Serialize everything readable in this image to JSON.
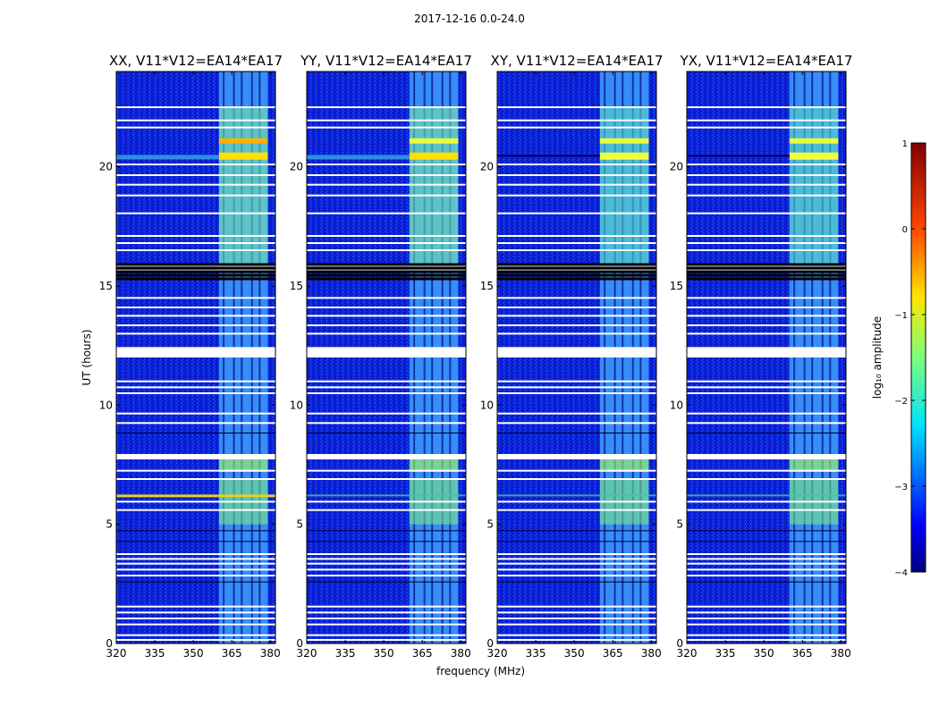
{
  "figure": {
    "suptitle": "2017-12-16 0.0-24.0",
    "xlabel": "frequency (MHz)",
    "ylabel": "UT (hours)",
    "colorbar_label": "log₁₀ amplitude"
  },
  "chart_data": {
    "type": "heatmap",
    "panels": [
      {
        "title": "XX, V11*V12=EA14*EA17",
        "strong_band_at_20h": true
      },
      {
        "title": "YY, V11*V12=EA14*EA17",
        "strong_band_at_20h": true
      },
      {
        "title": "XY, V11*V12=EA14*EA17",
        "strong_band_at_20h": false
      },
      {
        "title": "YX, V11*V12=EA14*EA17",
        "strong_band_at_20h": false
      }
    ],
    "x": {
      "label": "frequency (MHz)",
      "range": [
        320,
        382
      ],
      "ticks": [
        320,
        335,
        350,
        365,
        380
      ]
    },
    "y": {
      "label": "UT (hours)",
      "range": [
        0,
        24
      ],
      "ticks": [
        0,
        5,
        10,
        15,
        20
      ]
    },
    "colorbar": {
      "label": "log10 amplitude",
      "range": [
        -4,
        1
      ],
      "ticks": [
        -4,
        -3,
        -2,
        -1,
        0,
        1
      ],
      "colormap": "jet"
    },
    "rfi_band_mhz": [
      360,
      379
    ],
    "flagged_rows_ut": [
      0.15,
      0.35,
      0.8,
      1.05,
      1.3,
      1.55,
      2.85,
      3.1,
      3.35,
      3.55,
      3.75,
      5.6,
      5.95,
      6.9,
      7.25,
      9.25,
      9.65,
      10.5,
      10.75,
      11.0,
      12.2,
      12.3,
      12.4,
      13.0,
      13.35,
      13.75,
      14.1,
      14.5,
      15.45,
      15.65,
      15.85,
      16.5,
      16.8,
      17.1,
      18.05,
      18.8,
      19.25,
      19.65,
      20.1,
      21.65,
      21.95,
      22.5
    ],
    "tick_labels": {
      "x": [
        "320",
        "335",
        "350",
        "365",
        "380"
      ],
      "y": [
        "0",
        "5",
        "10",
        "15",
        "20"
      ],
      "colorbar": [
        "−4",
        "−3",
        "−2",
        "−1",
        "0",
        "1"
      ]
    }
  }
}
